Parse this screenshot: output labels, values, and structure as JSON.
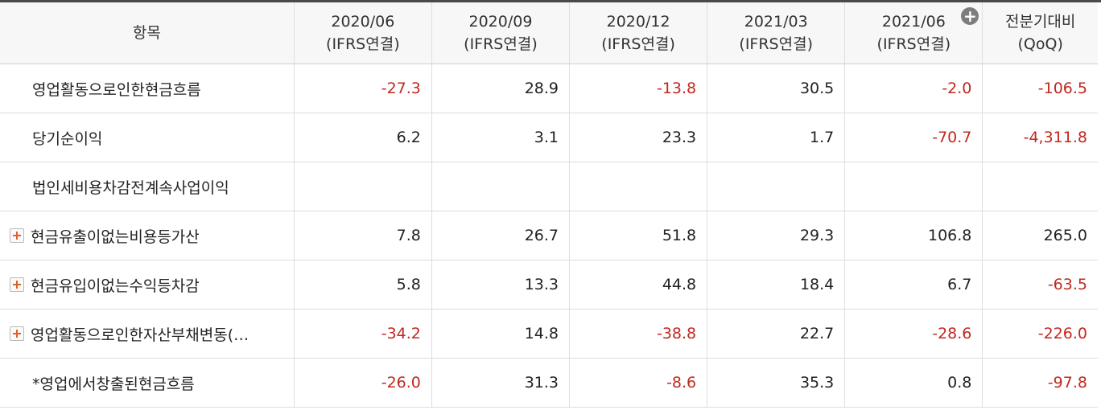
{
  "header": {
    "item_label": "항목",
    "columns": [
      {
        "period": "2020/06",
        "basis": "(IFRS연결)"
      },
      {
        "period": "2020/09",
        "basis": "(IFRS연결)"
      },
      {
        "period": "2020/12",
        "basis": "(IFRS연결)"
      },
      {
        "period": "2021/03",
        "basis": "(IFRS연결)"
      },
      {
        "period": "2021/06",
        "basis": "(IFRS연결)"
      },
      {
        "period": "전분기대비",
        "basis": "(QoQ)"
      }
    ],
    "more_columns_icon": "plus-circle-icon"
  },
  "colors": {
    "negative": "#c1281f",
    "positive": "#222222",
    "expand_icon": "#e0602a"
  },
  "rows": [
    {
      "label": "영업활동으로인한현금흐름",
      "values": [
        "-27.3",
        "28.9",
        "-13.8",
        "30.5",
        "-2.0",
        "-106.5"
      ]
    },
    {
      "label": "당기순이익",
      "values": [
        "6.2",
        "3.1",
        "23.3",
        "1.7",
        "-70.7",
        "-4,311.8"
      ]
    },
    {
      "label": "법인세비용차감전계속사업이익",
      "values": [
        "",
        "",
        "",
        "",
        "",
        ""
      ]
    },
    {
      "label": "현금유출이없는비용등가산",
      "expandable": true,
      "values": [
        "7.8",
        "26.7",
        "51.8",
        "29.3",
        "106.8",
        "265.0"
      ]
    },
    {
      "label": "현금유입이없는수익등차감",
      "expandable": true,
      "values": [
        "5.8",
        "13.3",
        "44.8",
        "18.4",
        "6.7",
        "-63.5"
      ]
    },
    {
      "label": "영업활동으로인한자산부채변동(…",
      "expandable": true,
      "values": [
        "-34.2",
        "14.8",
        "-38.8",
        "22.7",
        "-28.6",
        "-226.0"
      ]
    },
    {
      "label": "*영업에서창출된현금흐름",
      "values": [
        "-26.0",
        "31.3",
        "-8.6",
        "35.3",
        "0.8",
        "-97.8"
      ]
    }
  ]
}
